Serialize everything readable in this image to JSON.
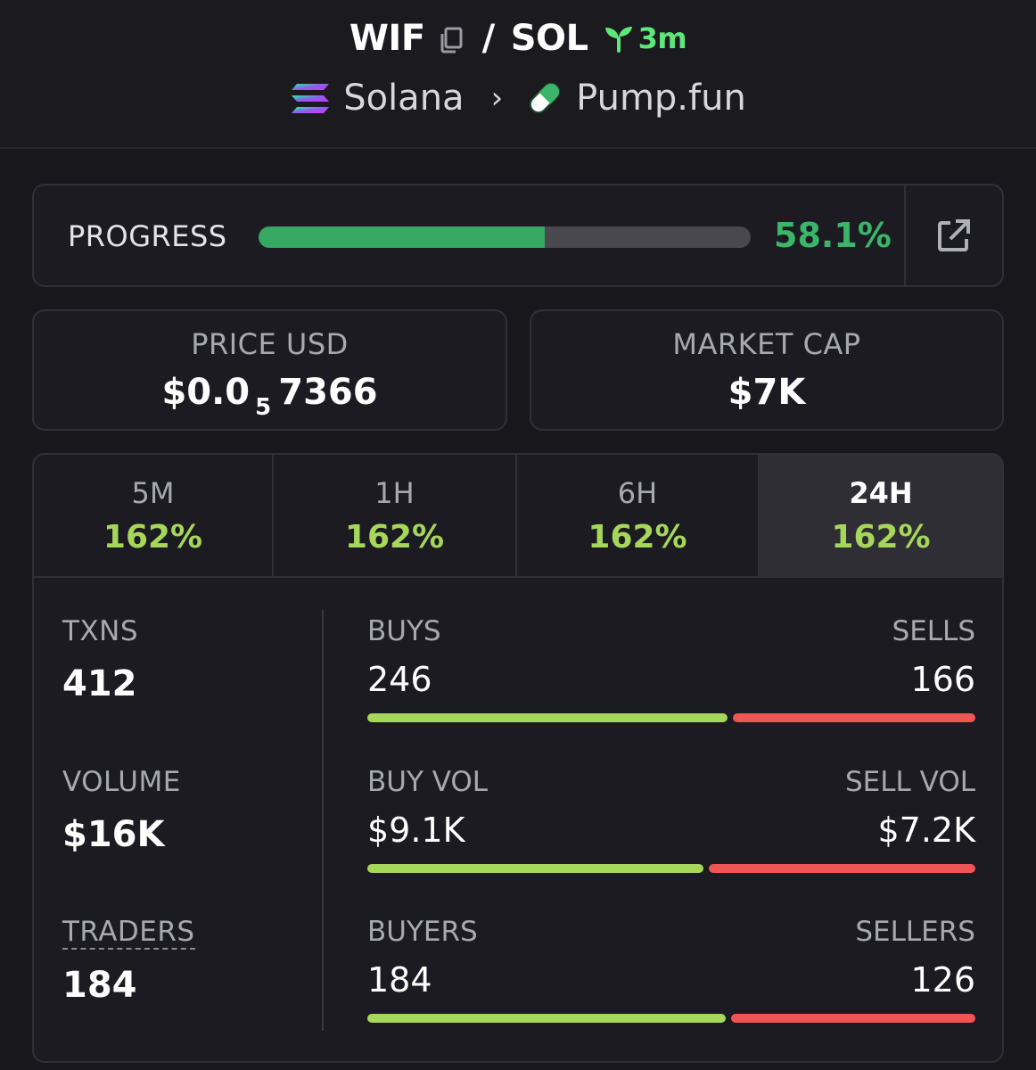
{
  "header": {
    "base_token": "WIF",
    "separator": "/",
    "quote_token": "SOL",
    "age": "3m",
    "chain": "Solana",
    "dex": "Pump.fun",
    "icons": {
      "copy": "copy-icon",
      "age": "sprout-icon",
      "chain": "solana-icon",
      "dex": "pill-icon",
      "chevron": "chevron-right-icon"
    }
  },
  "progress": {
    "label": "PROGRESS",
    "value_text": "58.1%",
    "fraction": 0.581,
    "icon": "external-link-icon"
  },
  "price": {
    "label": "PRICE USD",
    "prefix": "$0.0",
    "zero_count": "5",
    "digits": "7366"
  },
  "market_cap": {
    "label": "MARKET CAP",
    "value": "$7K"
  },
  "tabs": [
    {
      "label": "5M",
      "change": "162%",
      "active": false
    },
    {
      "label": "1H",
      "change": "162%",
      "active": false
    },
    {
      "label": "6H",
      "change": "162%",
      "active": false
    },
    {
      "label": "24H",
      "change": "162%",
      "active": true
    }
  ],
  "stats": {
    "txns": {
      "label": "TXNS",
      "value": "412"
    },
    "volume": {
      "label": "VOLUME",
      "value": "$16K"
    },
    "traders": {
      "label": "TRADERS",
      "value": "184"
    }
  },
  "breakdown": [
    {
      "left_label": "BUYS",
      "left_value": "246",
      "right_label": "SELLS",
      "right_value": "166",
      "buy_fraction": 0.597
    },
    {
      "left_label": "BUY VOL",
      "left_value": "$9.1K",
      "right_label": "SELL VOL",
      "right_value": "$7.2K",
      "buy_fraction": 0.558
    },
    {
      "left_label": "BUYERS",
      "left_value": "184",
      "right_label": "SELLERS",
      "right_value": "126",
      "buy_fraction": 0.594
    }
  ],
  "colors": {
    "accent_green": "#3ab56a",
    "buy_green": "#a6d65a",
    "sell_red": "#f05555",
    "background": "#17171c"
  }
}
